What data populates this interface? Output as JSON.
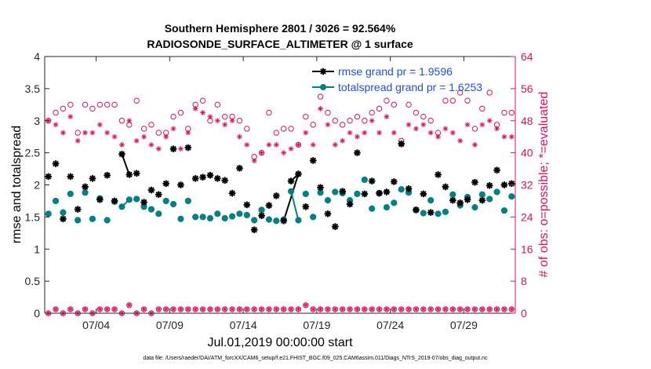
{
  "colors": {
    "rmse": "#000000",
    "spread": "#008080",
    "obs": "#D6145F",
    "legend_text": "#1F4FE0"
  },
  "chart_data": {
    "type": "scatter",
    "title": [
      "Southern Hemisphere 2801 / 3026 = 92.564%",
      "RADIOSONDE_SURFACE_ALTIMETER @ 1 surface"
    ],
    "xlabel": "Jul.01,2019 00:00:00 start",
    "ylabel": "rmse and totalspread",
    "ylabel_right": "# of obs: o=possible; *=evaluated",
    "xlim": [
      0,
      32
    ],
    "ylim": [
      0,
      4
    ],
    "ylim_right": [
      0,
      64
    ],
    "xticks": [
      3.5,
      8.5,
      13.5,
      18.5,
      23.5,
      28.5
    ],
    "xtick_labels": [
      "07/04",
      "07/09",
      "07/14",
      "07/19",
      "07/24",
      "07/29"
    ],
    "yticks": [
      0,
      0.5,
      1,
      1.5,
      2,
      2.5,
      3,
      3.5,
      4
    ],
    "ytick_labels": [
      "0",
      "0.5",
      "1",
      "1.5",
      "2",
      "2.5",
      "3",
      "3.5",
      "4"
    ],
    "yticks_right": [
      0,
      8,
      16,
      24,
      32,
      40,
      48,
      56,
      64
    ],
    "ytick_labels_right": [
      "0",
      "8",
      "16",
      "24",
      "32",
      "40",
      "48",
      "56",
      "64"
    ],
    "legend": [
      "rmse grand pr = 1.9596",
      "totalspread grand pr = 1.6253"
    ],
    "footer": "data file: /Users/raeder/DAI/ATM_forcXX/CAM6_setup/f.e21.FHIST_BGC.f09_025.CAM6assim.011/Diags_NTrS_2019-07/obs_diag_output.nc",
    "x": [
      0.25,
      0.75,
      1.25,
      1.75,
      2.25,
      2.75,
      3.25,
      3.75,
      4.25,
      4.75,
      5.25,
      5.75,
      6.25,
      6.75,
      7.25,
      7.75,
      8.25,
      8.75,
      9.25,
      9.75,
      10.25,
      10.75,
      11.25,
      11.75,
      12.25,
      12.75,
      13.25,
      13.75,
      14.25,
      14.75,
      15.25,
      15.75,
      16.25,
      16.75,
      17.25,
      17.75,
      18.25,
      18.75,
      19.25,
      19.75,
      20.25,
      20.75,
      21.25,
      21.75,
      22.25,
      22.75,
      23.25,
      23.75,
      24.25,
      24.75,
      25.25,
      25.75,
      26.25,
      26.75,
      27.25,
      27.75,
      28.25,
      28.75,
      29.25,
      29.75,
      30.25,
      30.75,
      31.25,
      31.75
    ],
    "series": [
      {
        "name": "rmse",
        "marker": "*",
        "axis": "left",
        "values": [
          2.13,
          2.33,
          1.47,
          2.13,
          1.62,
          1.97,
          2.1,
          1.77,
          2.15,
          1.75,
          2.48,
          2.16,
          2.18,
          1.73,
          1.92,
          1.85,
          2.02,
          2.56,
          2.0,
          2.58,
          2.1,
          2.12,
          2.15,
          2.1,
          2.07,
          1.87,
          2.26,
          1.69,
          1.3,
          1.52,
          1.68,
          1.83,
          1.44,
          2.06,
          2.17,
          1.66,
          2.38,
          1.96,
          1.55,
          1.35,
          1.9,
          1.7,
          2.5,
          1.86,
          2.06,
          1.87,
          1.89,
          2.05,
          2.64,
          1.94,
          1.61,
          1.86,
          1.57,
          2.16,
          1.97,
          1.76,
          1.72,
          1.77,
          2.04,
          1.76,
          1.99,
          2.23,
          2.0,
          2.02
        ],
        "links": [
          [
            10,
            11
          ],
          [
            32,
            34
          ],
          [
            33,
            34
          ]
        ]
      },
      {
        "name": "totalspread",
        "marker": "o",
        "axis": "left",
        "values": [
          1.55,
          1.75,
          1.57,
          1.86,
          1.45,
          1.88,
          1.47,
          1.79,
          1.45,
          1.74,
          1.66,
          1.77,
          1.78,
          1.66,
          1.62,
          1.55,
          1.75,
          1.7,
          1.47,
          1.75,
          1.5,
          1.5,
          1.48,
          1.55,
          1.48,
          1.51,
          1.55,
          1.53,
          1.45,
          1.61,
          1.46,
          1.44,
          1.46,
          1.9,
          1.45,
          1.86,
          1.5,
          1.88,
          1.76,
          1.89,
          1.87,
          1.76,
          1.86,
          2.08,
          1.63,
          1.87,
          1.65,
          1.72,
          1.93,
          1.88,
          1.61,
          1.56,
          1.76,
          1.55,
          1.58,
          1.85,
          1.68,
          1.81,
          1.65,
          1.85,
          1.78,
          1.89,
          1.6,
          1.82
        ],
        "links": [
          [
            10,
            11
          ],
          [
            33,
            34
          ]
        ]
      },
      {
        "name": "obs possible",
        "marker": "o",
        "axis": "right",
        "values": [
          48,
          50,
          51,
          52,
          45,
          52,
          51,
          52,
          52,
          52,
          48,
          47,
          53,
          46,
          47,
          45,
          45,
          49,
          50,
          46,
          52,
          53,
          48,
          52,
          49,
          49,
          48,
          46,
          39,
          40,
          50,
          45,
          46,
          46,
          42,
          49,
          47,
          54,
          50,
          48,
          47,
          48,
          49,
          48,
          50,
          51,
          53,
          52,
          43,
          52,
          50,
          49,
          48,
          45,
          53,
          53,
          55,
          53,
          46,
          51,
          55,
          47,
          50,
          50
        ],
        "obs_possible_zero": [
          0,
          1,
          0,
          1,
          0,
          1,
          0,
          1,
          1,
          1,
          0,
          2,
          0,
          1,
          0,
          1,
          1,
          1,
          1,
          1,
          1,
          1,
          1,
          1,
          1,
          1,
          1,
          1,
          1,
          1,
          1,
          1,
          1,
          1,
          1,
          2,
          1,
          1,
          1,
          1,
          1,
          1,
          1,
          1,
          1,
          1,
          1,
          1,
          1,
          1,
          1,
          1,
          1,
          1,
          1,
          1,
          1,
          1,
          1,
          1,
          1,
          1,
          1,
          1
        ]
      },
      {
        "name": "obs evaluated",
        "marker": "*",
        "axis": "right",
        "values": [
          48,
          47,
          45,
          49,
          43,
          45,
          45,
          47,
          45,
          44,
          42,
          48,
          43,
          44,
          42,
          41,
          44,
          46,
          41,
          45,
          51,
          50,
          49,
          48,
          47,
          48,
          44,
          42,
          38,
          40,
          42,
          42,
          40,
          41,
          42,
          45,
          42,
          51,
          47,
          42,
          43,
          45,
          44,
          45,
          48,
          45,
          49,
          45,
          42,
          47,
          46,
          47,
          45,
          44,
          46,
          45,
          43,
          47,
          42,
          47,
          48,
          46,
          44,
          44
        ],
        "obs_evaluated_zero": [
          0,
          1,
          0,
          1,
          0,
          1,
          0,
          1,
          1,
          1,
          0,
          2,
          0,
          1,
          0,
          1,
          1,
          1,
          1,
          1,
          1,
          1,
          1,
          1,
          1,
          1,
          1,
          1,
          1,
          1,
          1,
          1,
          1,
          1,
          1,
          2,
          1,
          1,
          1,
          1,
          1,
          1,
          1,
          1,
          1,
          1,
          1,
          1,
          1,
          1,
          1,
          1,
          1,
          1,
          1,
          1,
          1,
          1,
          1,
          1,
          1,
          1,
          1,
          1
        ]
      }
    ]
  }
}
